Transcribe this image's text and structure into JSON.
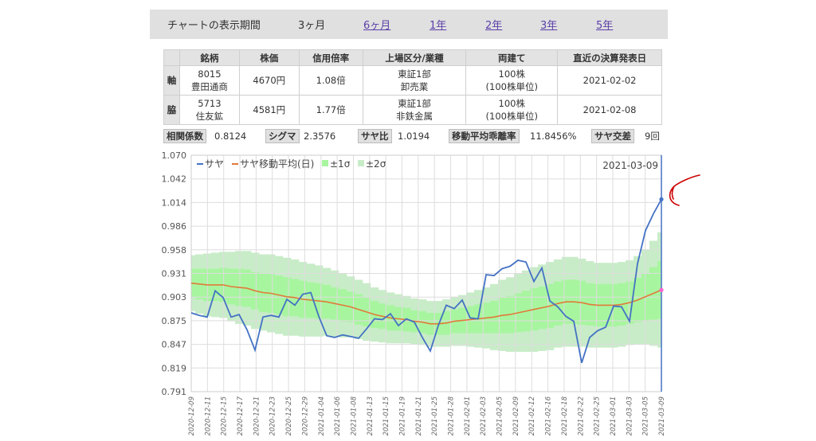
{
  "period": {
    "label": "チャートの表示期間",
    "options": [
      {
        "text": "3ヶ月",
        "link": false
      },
      {
        "text": "6ヶ月",
        "link": true
      },
      {
        "text": "1年",
        "link": true
      },
      {
        "text": "2年",
        "link": true
      },
      {
        "text": "3年",
        "link": true
      },
      {
        "text": "5年",
        "link": true
      }
    ]
  },
  "table": {
    "headers": [
      "",
      "銘柄",
      "株価",
      "信用倍率",
      "上場区分/業種",
      "両建て",
      "直近の決算発表日"
    ],
    "rows": [
      {
        "role": "軸",
        "code": "8015",
        "name": "豊田通商",
        "price": "4670円",
        "margin": "1.08倍",
        "market": "東証1部",
        "industry": "卸売業",
        "unit": "100株",
        "unit2": "(100株単位)",
        "date": "2021-02-02"
      },
      {
        "role": "脇",
        "code": "5713",
        "name": "住友鉱",
        "price": "4581円",
        "margin": "1.77倍",
        "market": "東証1部",
        "industry": "非鉄金属",
        "unit": "100株",
        "unit2": "(100株単位)",
        "date": "2021-02-08"
      }
    ]
  },
  "stats": [
    {
      "label": "相関係数",
      "value": "0.8124"
    },
    {
      "label": "シグマ",
      "value": "2.3576"
    },
    {
      "label": "サヤ比",
      "value": "1.0194"
    },
    {
      "label": "移動平均乖離率",
      "value": "11.8456%"
    },
    {
      "label": "サヤ交差",
      "value": "9回"
    }
  ],
  "colors": {
    "saya": "#4472c4",
    "ma": "#e07b39",
    "sigma1": "#a8f5a0",
    "sigma2": "#c8ecc8",
    "cursor": "#4472c4",
    "ma_end_dot": "#ff66cc",
    "annotation": "#cc0000"
  },
  "chart_data": {
    "type": "line",
    "date_label": "2021-03-09",
    "legend": [
      "サヤ",
      "サヤ移動平均(日)",
      "±1σ",
      "±2σ"
    ],
    "legend_placement": "top-left",
    "grid": true,
    "ylim": [
      0.791,
      1.07
    ],
    "yticks": [
      "1.070",
      "1.042",
      "1.014",
      "0.986",
      "0.958",
      "0.931",
      "0.903",
      "0.875",
      "0.847",
      "0.819",
      "0.791"
    ],
    "xticks": [
      "2020-12-09",
      "2020-12-11",
      "2020-12-15",
      "2020-12-17",
      "2020-12-21",
      "2020-12-23",
      "2020-12-25",
      "2020-12-29",
      "2021-01-04",
      "2021-01-06",
      "2021-01-08",
      "2021-01-13",
      "2021-01-15",
      "2021-01-19",
      "2021-01-21",
      "2021-01-25",
      "2021-01-28",
      "2021-02-01",
      "2021-02-03",
      "2021-02-05",
      "2021-02-09",
      "2021-02-12",
      "2021-02-16",
      "2021-02-18",
      "2021-02-22",
      "2021-02-25",
      "2021-03-01",
      "2021-03-03",
      "2021-03-05",
      "2021-03-09"
    ],
    "series": [
      {
        "name": "サヤ",
        "values": [
          0.884,
          0.881,
          0.879,
          0.91,
          0.902,
          0.879,
          0.882,
          0.864,
          0.84,
          0.879,
          0.881,
          0.879,
          0.9,
          0.893,
          0.906,
          0.908,
          0.88,
          0.857,
          0.855,
          0.858,
          0.856,
          0.854,
          0.865,
          0.877,
          0.876,
          0.883,
          0.869,
          0.877,
          0.873,
          0.855,
          0.839,
          0.869,
          0.893,
          0.889,
          0.899,
          0.878,
          0.877,
          0.929,
          0.928,
          0.936,
          0.939,
          0.946,
          0.944,
          0.921,
          0.937,
          0.898,
          0.891,
          0.88,
          0.874,
          0.825,
          0.855,
          0.863,
          0.867,
          0.892,
          0.891,
          0.874,
          0.942,
          0.981,
          1.001,
          1.018
        ]
      },
      {
        "name": "サヤ移動平均(日)",
        "values": [
          0.919,
          0.918,
          0.917,
          0.917,
          0.917,
          0.915,
          0.914,
          0.913,
          0.91,
          0.908,
          0.907,
          0.905,
          0.903,
          0.902,
          0.9,
          0.899,
          0.898,
          0.897,
          0.895,
          0.893,
          0.891,
          0.888,
          0.885,
          0.882,
          0.88,
          0.878,
          0.877,
          0.876,
          0.874,
          0.873,
          0.871,
          0.871,
          0.872,
          0.874,
          0.875,
          0.876,
          0.877,
          0.878,
          0.879,
          0.881,
          0.882,
          0.884,
          0.886,
          0.888,
          0.89,
          0.892,
          0.895,
          0.897,
          0.897,
          0.896,
          0.894,
          0.893,
          0.893,
          0.893,
          0.894,
          0.896,
          0.899,
          0.903,
          0.907,
          0.911
        ]
      },
      {
        "name": "±1σ",
        "values": [
          0.017,
          0.018,
          0.019,
          0.019,
          0.02,
          0.021,
          0.022,
          0.022,
          0.022,
          0.023,
          0.023,
          0.023,
          0.023,
          0.022,
          0.022,
          0.021,
          0.021,
          0.02,
          0.019,
          0.019,
          0.018,
          0.018,
          0.017,
          0.016,
          0.015,
          0.015,
          0.014,
          0.014,
          0.013,
          0.013,
          0.013,
          0.013,
          0.014,
          0.014,
          0.015,
          0.016,
          0.017,
          0.018,
          0.019,
          0.021,
          0.022,
          0.023,
          0.024,
          0.025,
          0.025,
          0.026,
          0.026,
          0.026,
          0.026,
          0.026,
          0.025,
          0.025,
          0.025,
          0.025,
          0.025,
          0.025,
          0.026,
          0.028,
          0.031,
          0.034
        ]
      },
      {
        "name": "±2σ",
        "values": [
          0.033,
          0.035,
          0.037,
          0.038,
          0.039,
          0.041,
          0.043,
          0.044,
          0.045,
          0.045,
          0.046,
          0.046,
          0.046,
          0.045,
          0.044,
          0.043,
          0.042,
          0.04,
          0.039,
          0.038,
          0.036,
          0.035,
          0.034,
          0.032,
          0.031,
          0.03,
          0.029,
          0.028,
          0.027,
          0.027,
          0.027,
          0.027,
          0.028,
          0.029,
          0.03,
          0.032,
          0.034,
          0.036,
          0.039,
          0.042,
          0.044,
          0.046,
          0.048,
          0.05,
          0.051,
          0.052,
          0.052,
          0.053,
          0.053,
          0.052,
          0.051,
          0.05,
          0.05,
          0.05,
          0.05,
          0.05,
          0.052,
          0.056,
          0.062,
          0.068
        ]
      }
    ]
  }
}
